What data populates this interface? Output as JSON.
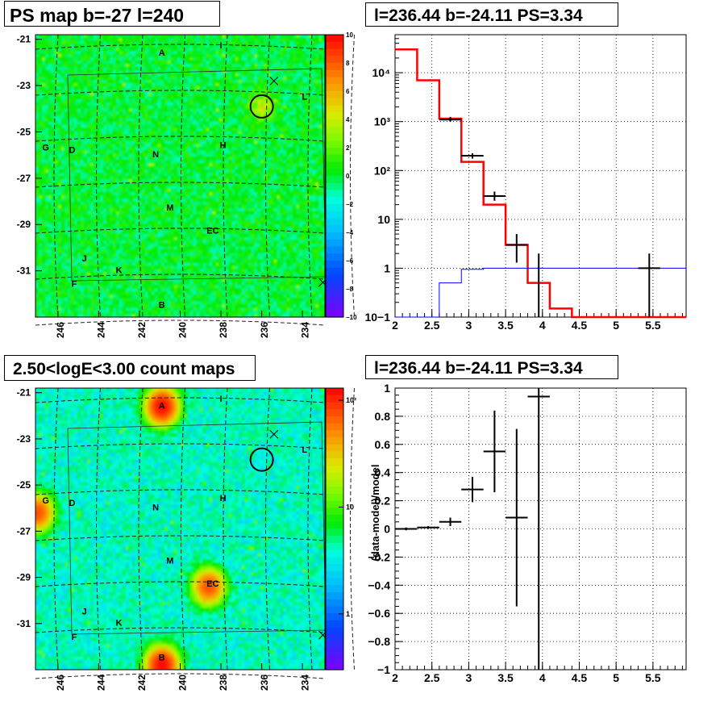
{
  "chart_data": [
    {
      "type": "heatmap",
      "title": "PS map b=-27 l=240",
      "x_tick_labels": [
        "246",
        "244",
        "242",
        "240",
        "238",
        "236",
        "234"
      ],
      "y_tick_labels": [
        "-21",
        "-23",
        "-25",
        "-27",
        "-29",
        "-31"
      ],
      "xlim": [
        247.1,
        232.9
      ],
      "ylim": [
        -33.0,
        -20.8
      ],
      "colorbar": {
        "scale": "linear",
        "min": -10,
        "max": 10,
        "tick_labels": [
          "10",
          "8",
          "6",
          "4",
          "2",
          "0",
          "−2",
          "−4",
          "−6",
          "−8",
          "−10"
        ]
      },
      "labels": [
        {
          "text": "A",
          "l": 240.9,
          "b": -21.7
        },
        {
          "text": "I",
          "l": 238.0,
          "b": -21.4
        },
        {
          "text": "L",
          "l": 233.9,
          "b": -23.6
        },
        {
          "text": "G",
          "l": 246.6,
          "b": -25.8
        },
        {
          "text": "D",
          "l": 245.3,
          "b": -25.9
        },
        {
          "text": "H",
          "l": 237.9,
          "b": -25.7
        },
        {
          "text": "N",
          "l": 241.2,
          "b": -26.1
        },
        {
          "text": "M",
          "l": 240.5,
          "b": -28.4
        },
        {
          "text": "EC",
          "l": 238.4,
          "b": -29.4
        },
        {
          "text": "J",
          "l": 244.7,
          "b": -30.6
        },
        {
          "text": "K",
          "l": 243.0,
          "b": -31.1
        },
        {
          "text": "F",
          "l": 245.2,
          "b": -31.7
        },
        {
          "text": "B",
          "l": 240.9,
          "b": -32.6
        }
      ],
      "circle": {
        "l": 236.0,
        "b": -23.9
      },
      "markers": [
        {
          "l": 235.4,
          "b": -22.8
        },
        {
          "l": 233.0,
          "b": -31.5
        }
      ]
    },
    {
      "type": "line",
      "title": "l=236.44 b=-24.11 PS=3.34",
      "xlim": [
        2,
        5.95
      ],
      "ylim": [
        0.1,
        60000
      ],
      "y_scale": "log",
      "x_tick_labels": [
        "2",
        "2.5",
        "3",
        "3.5",
        "4",
        "4.5",
        "5",
        "5.5"
      ],
      "y_tick_labels": [
        "10−1",
        "1",
        "10",
        "10²",
        "10³",
        "10⁴"
      ],
      "grid": true,
      "series": [
        {
          "style": "histogram",
          "color": "#ff0000",
          "edges": [
            2.0,
            2.3,
            2.6,
            2.9,
            3.2,
            3.5,
            3.8,
            4.1,
            4.4,
            4.7,
            5.0,
            5.3,
            5.6,
            5.95
          ],
          "values": [
            30000,
            7000,
            1150,
            150,
            20,
            3,
            0.5,
            0.15,
            0.1,
            0.1,
            0.1,
            0.1,
            0.1
          ]
        },
        {
          "style": "histogram",
          "color": "#0000ff",
          "edges": [
            2.0,
            2.3,
            2.6,
            2.9,
            3.2,
            3.5,
            3.8,
            4.1,
            4.4,
            4.7,
            5.0,
            5.3,
            5.6,
            5.95
          ],
          "values": [
            0.07,
            0.1,
            0.5,
            0.95,
            1.0,
            1.0,
            1.0,
            1.0,
            1.0,
            1.0,
            1.0,
            1.0,
            1.0
          ]
        },
        {
          "style": "points",
          "color": "#000000",
          "points": [
            {
              "x": 2.75,
              "y": 1100,
              "xerr": 0.15,
              "ylo": 1000,
              "yhi": 1250
            },
            {
              "x": 3.05,
              "y": 200,
              "xerr": 0.15,
              "ylo": 175,
              "yhi": 225
            },
            {
              "x": 3.35,
              "y": 30,
              "xerr": 0.15,
              "ylo": 24,
              "yhi": 37
            },
            {
              "x": 3.65,
              "y": 3,
              "xerr": 0.15,
              "ylo": 1.3,
              "yhi": 5
            },
            {
              "x": 3.95,
              "y": 0.1,
              "xerr": 0.0,
              "ylo": 0.1,
              "yhi": 2
            },
            {
              "x": 5.45,
              "y": 1,
              "xerr": 0.15,
              "ylo": 0.1,
              "yhi": 2
            }
          ]
        }
      ]
    },
    {
      "type": "heatmap",
      "title": "2.50<logE<3.00 count maps",
      "x_tick_labels": [
        "246",
        "244",
        "242",
        "240",
        "238",
        "236",
        "234"
      ],
      "y_tick_labels": [
        "-21",
        "-23",
        "-25",
        "-27",
        "-29",
        "-31"
      ],
      "xlim": [
        247.1,
        232.9
      ],
      "ylim": [
        -33.0,
        -20.8
      ],
      "colorbar": {
        "scale": "log",
        "min": 0.3,
        "max": 130,
        "tick_labels": [
          "10²",
          "10",
          "1"
        ]
      },
      "sources": [
        {
          "l": 240.9,
          "b": -21.6,
          "strength": 1.0
        },
        {
          "l": 240.9,
          "b": -32.8,
          "strength": 1.0
        },
        {
          "l": 238.6,
          "b": -29.4,
          "strength": 0.6
        },
        {
          "l": 247.0,
          "b": -26.2,
          "strength": 0.6
        }
      ],
      "labels": [
        {
          "text": "A",
          "l": 240.9,
          "b": -21.7
        },
        {
          "text": "I",
          "l": 238.0,
          "b": -21.4
        },
        {
          "text": "L",
          "l": 233.9,
          "b": -23.6
        },
        {
          "text": "G",
          "l": 246.6,
          "b": -25.8
        },
        {
          "text": "D",
          "l": 245.3,
          "b": -25.9
        },
        {
          "text": "H",
          "l": 237.9,
          "b": -25.7
        },
        {
          "text": "N",
          "l": 241.2,
          "b": -26.1
        },
        {
          "text": "M",
          "l": 240.5,
          "b": -28.4
        },
        {
          "text": "EC",
          "l": 238.4,
          "b": -29.4
        },
        {
          "text": "J",
          "l": 244.7,
          "b": -30.6
        },
        {
          "text": "K",
          "l": 243.0,
          "b": -31.1
        },
        {
          "text": "F",
          "l": 245.2,
          "b": -31.7
        },
        {
          "text": "B",
          "l": 240.9,
          "b": -32.6
        }
      ],
      "circle": {
        "l": 236.0,
        "b": -23.9
      },
      "markers": [
        {
          "l": 235.4,
          "b": -22.8
        },
        {
          "l": 233.0,
          "b": -31.5
        }
      ]
    },
    {
      "type": "scatter",
      "title": "l=236.44 b=-24.11 PS=3.34",
      "ylabel": "(data-model)/model",
      "xlim": [
        2,
        5.95
      ],
      "ylim": [
        -1,
        1
      ],
      "x_tick_labels": [
        "2",
        "2.5",
        "3",
        "3.5",
        "4",
        "4.5",
        "5",
        "5.5"
      ],
      "y_tick_labels": [
        "1",
        "0.8",
        "0.6",
        "0.4",
        "0.2",
        "0",
        "−0.2",
        "−0.4",
        "−0.6",
        "−0.8",
        "−1"
      ],
      "grid": true,
      "points": [
        {
          "x": 2.15,
          "y": 0.0,
          "xerr": 0.15,
          "yerr": 0.01
        },
        {
          "x": 2.45,
          "y": 0.01,
          "xerr": 0.15,
          "yerr": 0.01
        },
        {
          "x": 2.75,
          "y": 0.05,
          "xerr": 0.15,
          "yerr": 0.03
        },
        {
          "x": 3.05,
          "y": 0.28,
          "xerr": 0.15,
          "yerr": 0.09
        },
        {
          "x": 3.35,
          "y": 0.55,
          "xerr": 0.15,
          "yerr": 0.29
        },
        {
          "x": 3.65,
          "y": 0.08,
          "xerr": 0.15,
          "yerr": 0.63
        },
        {
          "x": 3.95,
          "y": 0.94,
          "xerr": 0.15,
          "yerr": 1.94
        }
      ]
    }
  ]
}
